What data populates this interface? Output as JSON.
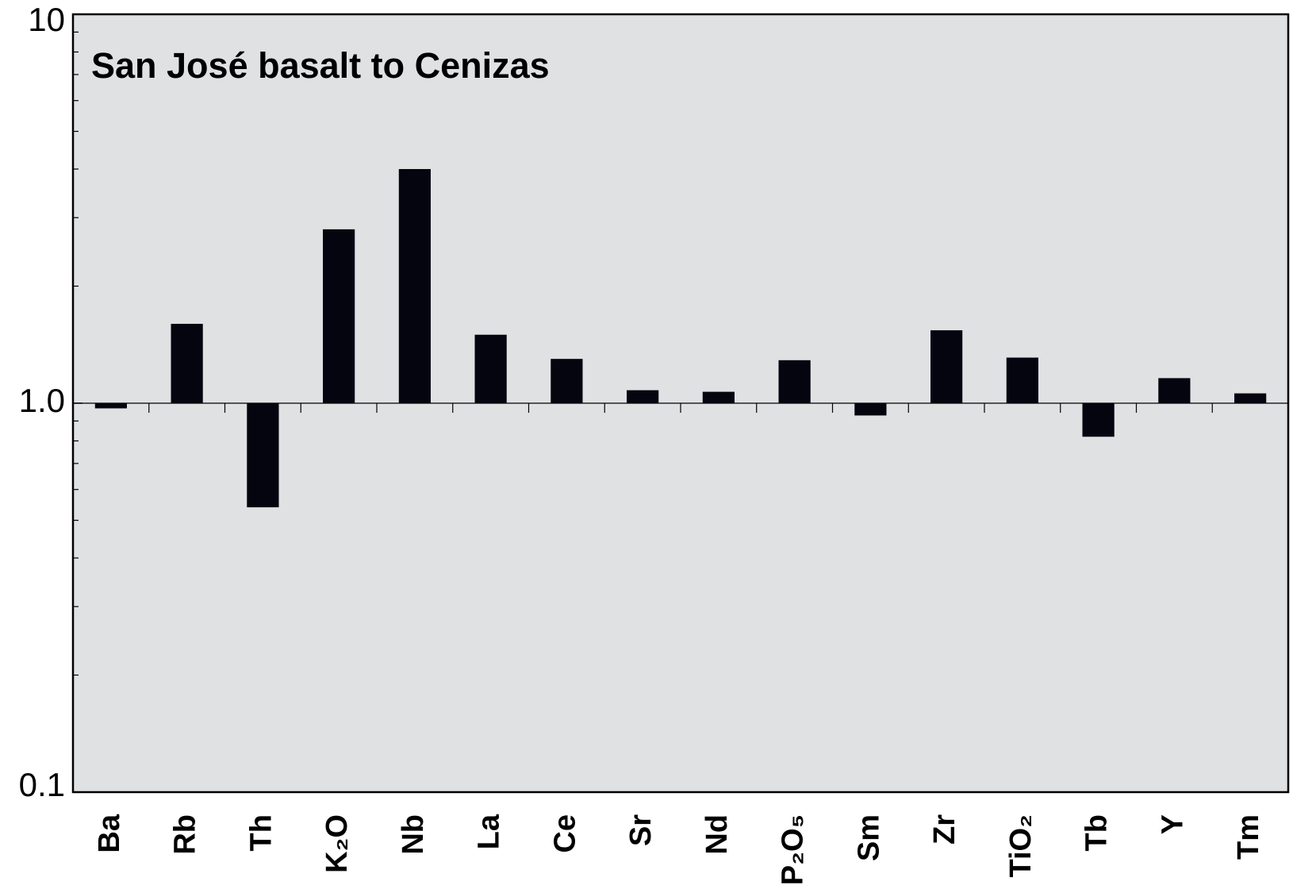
{
  "chart_data": {
    "type": "bar",
    "title": "San José basalt to Cenizas",
    "categories": [
      "Ba",
      "Rb",
      "Th",
      "K₂O",
      "Nb",
      "La",
      "Ce",
      "Sr",
      "Nd",
      "P₂O₅",
      "Sm",
      "Zr",
      "TiO₂",
      "Tb",
      "Y",
      "Tm"
    ],
    "values": [
      0.97,
      1.6,
      0.54,
      2.8,
      4.0,
      1.5,
      1.3,
      1.08,
      1.07,
      1.29,
      0.93,
      1.54,
      1.31,
      0.82,
      1.16,
      1.06
    ],
    "color": "#05050f",
    "baseline": 1,
    "log_scale": true,
    "ylim": [
      0.1,
      10
    ],
    "yticks": [
      0.1,
      {
        "value": 1,
        "label": "1.0"
      },
      10
    ],
    "minor_yticks": [
      0.2,
      0.3,
      0.4,
      0.5,
      0.6,
      0.7,
      0.8,
      0.9,
      2,
      3,
      4,
      5,
      6,
      7,
      8,
      9
    ],
    "grid": false
  }
}
